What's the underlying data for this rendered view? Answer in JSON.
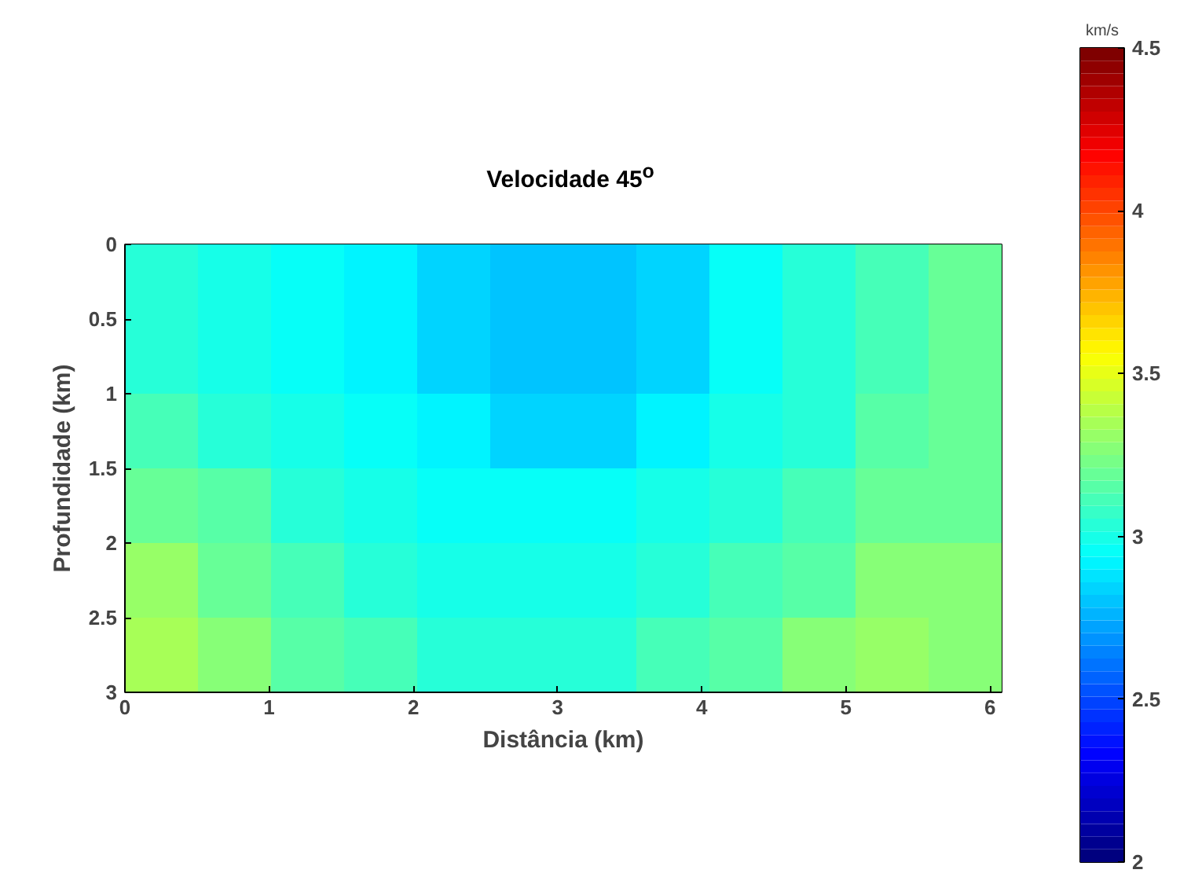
{
  "chart_data": {
    "type": "heatmap",
    "title": "Velocidade 45$^{o}$",
    "xlabel": "Distância (km)",
    "ylabel": "Profundidade (km)",
    "clabel": "km/s",
    "xlim": [
      0,
      6.08
    ],
    "ylim": [
      3,
      0
    ],
    "xticks": [
      0,
      1,
      2,
      3,
      4,
      5,
      6
    ],
    "yticks": [
      0,
      0.5,
      1,
      1.5,
      2,
      2.5,
      3
    ],
    "clim": [
      2,
      4.5
    ],
    "cticks": [
      2,
      2.5,
      3,
      3.5,
      4,
      4.5
    ],
    "cells": [
      [
        3.05,
        3.0,
        2.95,
        2.9,
        2.85,
        2.8,
        2.8,
        2.85,
        2.95,
        3.05,
        3.1,
        3.2
      ],
      [
        3.05,
        3.0,
        2.95,
        2.9,
        2.85,
        2.8,
        2.8,
        2.85,
        2.95,
        3.05,
        3.1,
        3.2
      ],
      [
        3.1,
        3.05,
        3.0,
        2.95,
        2.9,
        2.85,
        2.85,
        2.9,
        3.0,
        3.05,
        3.15,
        3.2
      ],
      [
        3.2,
        3.15,
        3.05,
        3.0,
        2.95,
        2.95,
        2.95,
        3.0,
        3.05,
        3.1,
        3.2,
        3.2
      ],
      [
        3.3,
        3.2,
        3.1,
        3.05,
        3.0,
        3.0,
        3.0,
        3.05,
        3.1,
        3.15,
        3.25,
        3.25
      ],
      [
        3.35,
        3.25,
        3.15,
        3.1,
        3.05,
        3.05,
        3.05,
        3.1,
        3.15,
        3.25,
        3.3,
        3.25
      ]
    ]
  }
}
